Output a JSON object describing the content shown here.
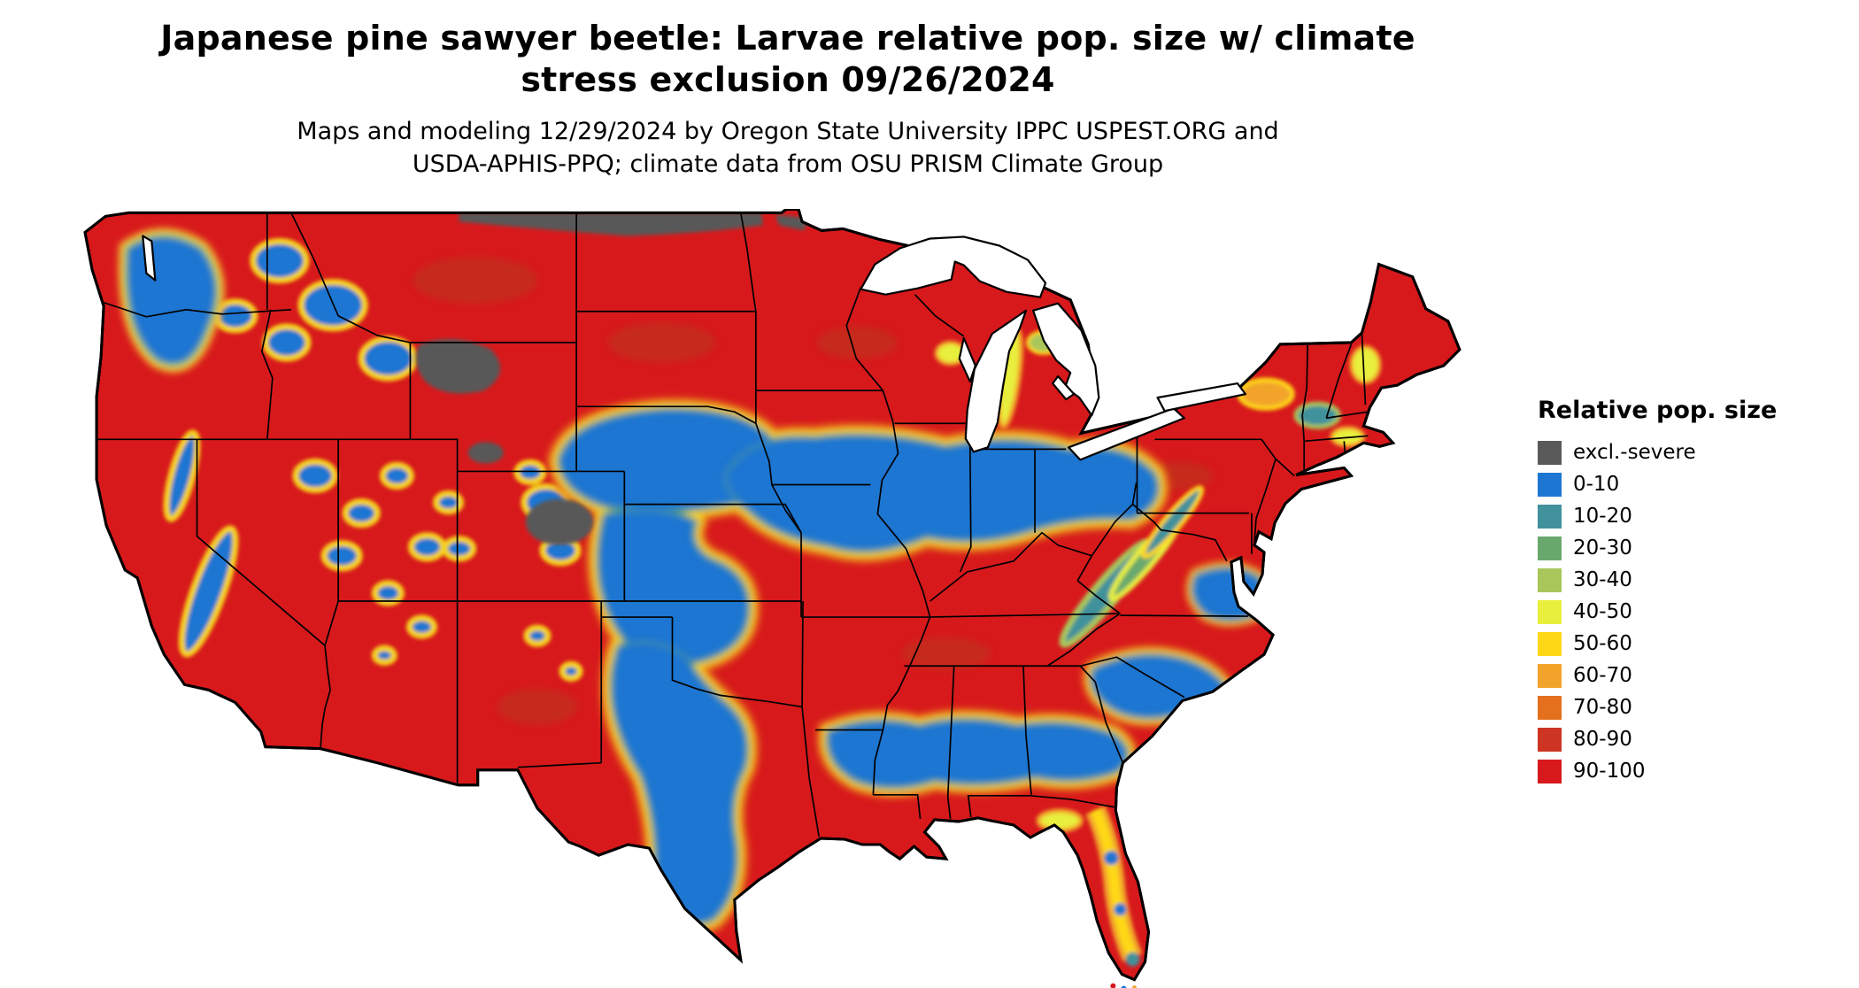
{
  "title": {
    "line1": "Japanese pine sawyer beetle: Larvae relative pop. size w/ climate",
    "line2": "stress exclusion 09/26/2024"
  },
  "subtitle": {
    "line1": "Maps and modeling 12/29/2024 by Oregon State University IPPC USPEST.ORG and",
    "line2": "USDA-APHIS-PPQ; climate data from OSU PRISM Climate Group"
  },
  "legend": {
    "title": "Relative pop. size",
    "entries": [
      {
        "label": "excl.-severe",
        "color": "#595959"
      },
      {
        "label": "0-10",
        "color": "#1d76d2"
      },
      {
        "label": "10-20",
        "color": "#41919c"
      },
      {
        "label": "20-30",
        "color": "#69a86d"
      },
      {
        "label": "30-40",
        "color": "#a9c65a"
      },
      {
        "label": "40-50",
        "color": "#e8ef3c"
      },
      {
        "label": "50-60",
        "color": "#fed816"
      },
      {
        "label": "60-70",
        "color": "#f2a42a"
      },
      {
        "label": "70-80",
        "color": "#e4701e"
      },
      {
        "label": "80-90",
        "color": "#cd3422"
      },
      {
        "label": "90-100",
        "color": "#d7191c"
      }
    ]
  },
  "map": {
    "region": "Contiguous United States",
    "kind": "raster choropleth of modeled larvae relative population size",
    "dominant_color": "#d7191c",
    "excluded_color": "#595959",
    "low_pop_color": "#1d76d2",
    "water_color": "#ffffff",
    "boundary_color": "#000000"
  }
}
